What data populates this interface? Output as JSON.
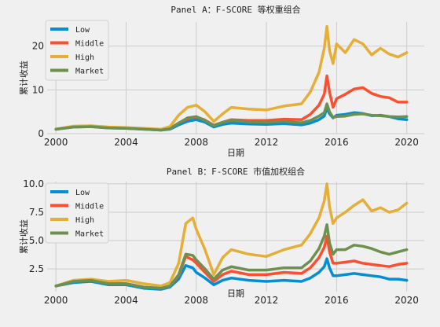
{
  "chart_data": [
    {
      "type": "line",
      "title": "Panel A：F-SCORE 等权重组合",
      "xlabel": "日期",
      "ylabel": "累计收益",
      "xlim": [
        1999.5,
        2021.0
      ],
      "ylim": [
        0,
        25.5
      ],
      "xticks": [
        2000,
        2004,
        2008,
        2012,
        2016,
        2020
      ],
      "yticks": [
        0,
        10,
        20
      ],
      "grid": true,
      "legend_position": "top-left",
      "x": [
        2000,
        2001,
        2002,
        2003,
        2004,
        2005,
        2006,
        2006.5,
        2007,
        2007.5,
        2008,
        2008.5,
        2009,
        2009.5,
        2010,
        2011,
        2012,
        2013,
        2014,
        2014.5,
        2015,
        2015.3,
        2015.45,
        2015.6,
        2015.8,
        2016,
        2016.5,
        2017,
        2017.5,
        2018,
        2018.5,
        2019,
        2019.5,
        2020
      ],
      "series": [
        {
          "name": "Low",
          "color": "#008fd5",
          "values": [
            1.0,
            1.5,
            1.6,
            1.3,
            1.2,
            1.0,
            0.8,
            1.0,
            2.0,
            2.8,
            3.2,
            2.6,
            1.5,
            2.1,
            2.4,
            2.2,
            2.1,
            2.3,
            2.0,
            2.4,
            3.2,
            4.0,
            5.8,
            4.5,
            3.6,
            4.2,
            4.4,
            4.8,
            4.6,
            4.1,
            4.2,
            3.9,
            3.4,
            3.2
          ]
        },
        {
          "name": "Middle",
          "color": "#fc4f30",
          "values": [
            1.0,
            1.6,
            1.7,
            1.4,
            1.3,
            1.1,
            0.9,
            1.2,
            2.4,
            3.4,
            3.8,
            3.1,
            1.9,
            2.6,
            3.2,
            3.0,
            3.0,
            3.3,
            3.2,
            4.4,
            6.5,
            9.0,
            13.2,
            9.5,
            6.0,
            8.0,
            9.0,
            10.2,
            10.5,
            9.2,
            8.5,
            8.2,
            7.2,
            7.2
          ]
        },
        {
          "name": "High",
          "color": "#e5ae38",
          "values": [
            1.0,
            1.7,
            1.8,
            1.5,
            1.4,
            1.2,
            1.0,
            1.6,
            4.2,
            6.0,
            6.5,
            5.0,
            2.8,
            4.5,
            6.0,
            5.6,
            5.4,
            6.3,
            6.8,
            9.5,
            14.0,
            19.5,
            24.5,
            19.0,
            16.0,
            20.5,
            18.5,
            21.5,
            20.5,
            18.0,
            19.5,
            18.2,
            17.5,
            18.5
          ]
        },
        {
          "name": "Market",
          "color": "#6d904f",
          "values": [
            1.0,
            1.5,
            1.6,
            1.3,
            1.2,
            1.0,
            0.8,
            1.1,
            2.4,
            3.6,
            3.9,
            3.0,
            1.8,
            2.6,
            3.0,
            2.7,
            2.6,
            2.8,
            2.5,
            3.0,
            4.0,
            4.8,
            6.8,
            5.0,
            3.7,
            3.9,
            4.0,
            4.4,
            4.5,
            4.2,
            4.1,
            3.9,
            3.8,
            3.9
          ]
        }
      ]
    },
    {
      "type": "line",
      "title": "Panel B：F-SCORE 市值加权组合",
      "xlabel": "日期",
      "ylabel": "累计收益",
      "xlim": [
        1999.5,
        2021.0
      ],
      "ylim": [
        0.5,
        10.2
      ],
      "xticks": [
        2000,
        2004,
        2008,
        2012,
        2016,
        2020
      ],
      "yticks": [
        2.5,
        5.0,
        7.5,
        10.0
      ],
      "ytick_labels": [
        "2.5",
        "5.0",
        "7.5",
        "10.0"
      ],
      "grid": true,
      "legend_position": "top-left",
      "x": [
        2000,
        2001,
        2002,
        2003,
        2004,
        2005,
        2006,
        2006.5,
        2007,
        2007.4,
        2007.8,
        2008,
        2008.5,
        2009,
        2009.5,
        2010,
        2011,
        2012,
        2013,
        2014,
        2014.5,
        2015,
        2015.3,
        2015.45,
        2015.6,
        2015.8,
        2016,
        2016.5,
        2017,
        2017.5,
        2018,
        2018.5,
        2019,
        2019.5,
        2020
      ],
      "series": [
        {
          "name": "Low",
          "color": "#008fd5",
          "values": [
            1.0,
            1.3,
            1.4,
            1.1,
            1.1,
            0.8,
            0.7,
            0.9,
            1.6,
            2.8,
            2.6,
            2.2,
            1.7,
            1.1,
            1.5,
            1.7,
            1.5,
            1.4,
            1.5,
            1.4,
            1.7,
            2.2,
            2.7,
            3.4,
            2.6,
            1.9,
            1.9,
            2.0,
            2.1,
            2.0,
            1.9,
            1.8,
            1.6,
            1.6,
            1.5
          ]
        },
        {
          "name": "Middle",
          "color": "#fc4f30",
          "values": [
            1.0,
            1.4,
            1.5,
            1.2,
            1.2,
            0.9,
            0.8,
            1.0,
            1.9,
            3.6,
            3.3,
            3.0,
            2.2,
            1.4,
            2.0,
            2.3,
            2.0,
            2.0,
            2.2,
            2.1,
            2.6,
            3.5,
            4.4,
            5.4,
            4.0,
            3.0,
            3.0,
            3.1,
            3.2,
            3.0,
            2.9,
            2.8,
            2.7,
            2.9,
            3.0
          ]
        },
        {
          "name": "High",
          "color": "#e5ae38",
          "values": [
            1.0,
            1.5,
            1.6,
            1.4,
            1.5,
            1.2,
            1.0,
            1.3,
            3.0,
            6.5,
            7.0,
            6.0,
            4.2,
            2.0,
            3.5,
            4.2,
            3.8,
            3.6,
            4.2,
            4.6,
            5.6,
            7.0,
            8.5,
            10.0,
            8.0,
            6.5,
            7.0,
            7.5,
            8.1,
            8.6,
            7.6,
            7.9,
            7.5,
            7.7,
            8.3
          ]
        },
        {
          "name": "Market",
          "color": "#6d904f",
          "values": [
            1.0,
            1.4,
            1.5,
            1.2,
            1.2,
            0.9,
            0.8,
            1.0,
            2.0,
            3.8,
            3.7,
            3.3,
            2.5,
            1.6,
            2.4,
            2.7,
            2.4,
            2.4,
            2.6,
            2.6,
            3.2,
            4.3,
            5.4,
            6.4,
            4.8,
            3.8,
            4.2,
            4.2,
            4.6,
            4.5,
            4.3,
            4.0,
            3.8,
            4.0,
            4.2
          ]
        }
      ]
    }
  ]
}
